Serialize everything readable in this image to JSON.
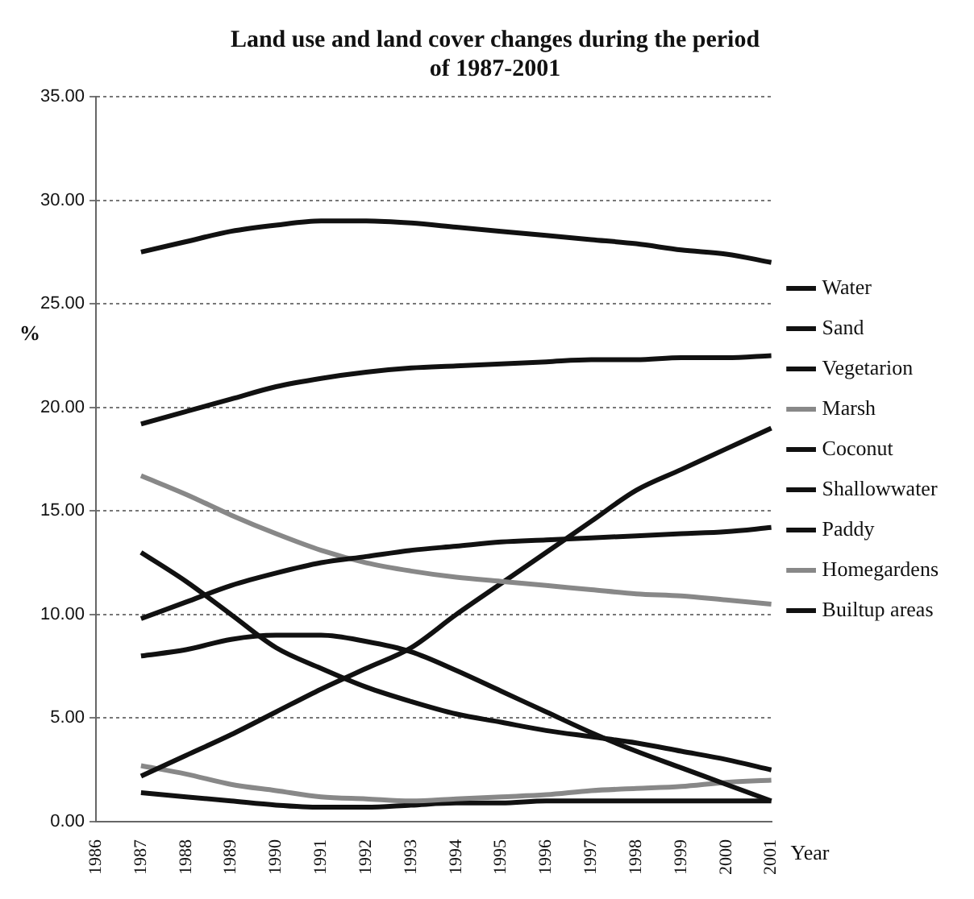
{
  "chart_data": {
    "type": "line",
    "title": "Land use and land cover changes during the period of 1987-2001",
    "xlabel": "Year",
    "ylabel": "%",
    "categories": [
      "1986",
      "1987",
      "1988",
      "1989",
      "1990",
      "1991",
      "1992",
      "1993",
      "1994",
      "1995",
      "1996",
      "1997",
      "1998",
      "1999",
      "2000",
      "2001"
    ],
    "ylim": [
      0,
      35
    ],
    "yticks": [
      {
        "value": 0,
        "label": "0.00"
      },
      {
        "value": 5,
        "label": "5.00"
      },
      {
        "value": 10,
        "label": "10.00"
      },
      {
        "value": 15,
        "label": "15.00"
      },
      {
        "value": 20,
        "label": "20.00"
      },
      {
        "value": 25,
        "label": "25.00"
      },
      {
        "value": 30,
        "label": "30.00"
      },
      {
        "value": 35,
        "label": "35.00"
      }
    ],
    "grid": "y",
    "legend": "right",
    "marker": "none",
    "line_style": "solid",
    "series": [
      {
        "name": "Water",
        "color": "#111111",
        "values": [
          null,
          27.5,
          28.0,
          28.5,
          28.8,
          29.0,
          29.0,
          28.9,
          28.7,
          28.5,
          28.3,
          28.1,
          27.9,
          27.6,
          27.4,
          27.0
        ]
      },
      {
        "name": "Sand",
        "color": "#111111",
        "values": [
          null,
          19.2,
          19.8,
          20.4,
          21.0,
          21.4,
          21.7,
          21.9,
          22.0,
          22.1,
          22.2,
          22.3,
          22.3,
          22.4,
          22.4,
          22.5
        ]
      },
      {
        "name": "Vegetarion",
        "color": "#111111",
        "values": [
          null,
          9.8,
          10.6,
          11.4,
          12.0,
          12.5,
          12.8,
          13.1,
          13.3,
          13.5,
          13.6,
          13.7,
          13.8,
          13.9,
          14.0,
          14.2
        ]
      },
      {
        "name": "Marsh",
        "color": "#888888",
        "values": [
          null,
          16.7,
          15.8,
          14.8,
          13.9,
          13.1,
          12.5,
          12.1,
          11.8,
          11.6,
          11.4,
          11.2,
          11.0,
          10.9,
          10.7,
          10.5
        ]
      },
      {
        "name": "Coconut",
        "color": "#111111",
        "values": [
          null,
          8.0,
          8.3,
          8.8,
          9.0,
          9.0,
          8.7,
          8.2,
          7.3,
          6.3,
          5.3,
          4.3,
          3.4,
          2.6,
          1.8,
          1.0
        ]
      },
      {
        "name": "Shallowwater",
        "color": "#111111",
        "values": [
          null,
          13.0,
          11.6,
          10.0,
          8.4,
          7.4,
          6.5,
          5.8,
          5.2,
          4.8,
          4.4,
          4.1,
          3.8,
          3.4,
          3.0,
          2.5
        ]
      },
      {
        "name": "Paddy",
        "color": "#111111",
        "values": [
          null,
          2.2,
          3.2,
          4.2,
          5.3,
          6.4,
          7.4,
          8.4,
          10.0,
          11.5,
          13.0,
          14.5,
          16.0,
          17.0,
          18.0,
          19.0
        ]
      },
      {
        "name": "Homegardens",
        "color": "#888888",
        "values": [
          null,
          2.7,
          2.3,
          1.8,
          1.5,
          1.2,
          1.1,
          1.0,
          1.1,
          1.2,
          1.3,
          1.5,
          1.6,
          1.7,
          1.9,
          2.0
        ]
      },
      {
        "name": "Builtup areas",
        "color": "#111111",
        "values": [
          null,
          1.4,
          1.2,
          1.0,
          0.8,
          0.7,
          0.7,
          0.8,
          0.9,
          0.9,
          1.0,
          1.0,
          1.0,
          1.0,
          1.0,
          1.0
        ]
      }
    ]
  }
}
